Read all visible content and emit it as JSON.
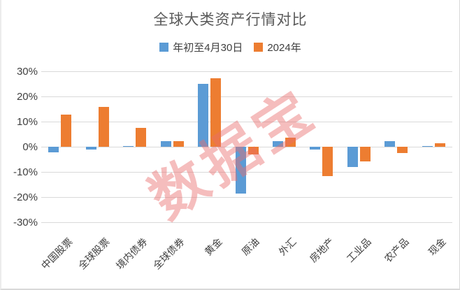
{
  "page": {
    "watermark": "数据宝"
  },
  "chart_data": {
    "type": "bar",
    "title": "全球大类资产行情对比",
    "categories": [
      "中国股票",
      "全球股票",
      "境内债券",
      "全球债券",
      "黄金",
      "原油",
      "外汇",
      "房地产",
      "工业品",
      "农产品",
      "现金"
    ],
    "series": [
      {
        "name": "年初至4月30日",
        "color": "#5B9BD5",
        "values": [
          -2.2,
          -1.1,
          0.4,
          2.3,
          25.0,
          -18.6,
          2.2,
          -1.0,
          -8.0,
          2.2,
          0.4
        ]
      },
      {
        "name": "2024年",
        "color": "#ED7D31",
        "values": [
          12.7,
          15.8,
          7.5,
          2.3,
          27.3,
          -3.1,
          3.7,
          -11.8,
          -5.9,
          -2.5,
          1.3
        ]
      }
    ],
    "ylabel": "",
    "xlabel": "",
    "ylim": [
      -30,
      30
    ],
    "ytick_values": [
      30,
      20,
      10,
      0,
      -10,
      -20,
      -30
    ],
    "ytick_labels": [
      "30%",
      "20%",
      "10%",
      "0%",
      "-10%",
      "-20%",
      "-30%"
    ],
    "grid": true,
    "legend_position": "top",
    "colors": {
      "grid": "#d9d9d9",
      "text": "#404040",
      "title": "#595959",
      "watermark": "#E96C6C"
    }
  }
}
